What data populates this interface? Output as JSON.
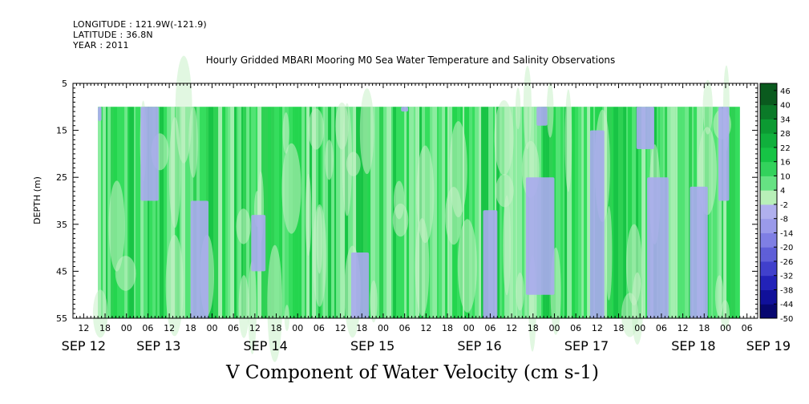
{
  "header": {
    "longitude": "LONGITUDE : 121.9W(-121.9)",
    "latitude": "LATITUDE : 36.8N",
    "year": "YEAR : 2011"
  },
  "chart_data": {
    "type": "heatmap",
    "title": "Hourly Gridded MBARI Mooring M0 Sea Water Temperature and Salinity Observations",
    "variable_label": "V Component of Water Velocity (cm s-1)",
    "ylabel": "DEPTH (m)",
    "ylim": [
      5,
      55
    ],
    "y_inverted": true,
    "y_ticks": [
      5,
      15,
      25,
      35,
      45,
      55
    ],
    "data_depth_range": [
      10,
      55
    ],
    "time_start_hour": 16,
    "time_end_hour": 196,
    "axis_start_hour": 9,
    "axis_end_hour": 201,
    "hour_tick_labels": [
      "12",
      "18",
      "00",
      "06",
      "12",
      "18",
      "00",
      "06",
      "12",
      "18",
      "00",
      "06",
      "12",
      "18",
      "00",
      "06",
      "12",
      "18",
      "00",
      "06",
      "12",
      "18",
      "00",
      "06",
      "12",
      "18",
      "00",
      "06",
      "12",
      "18",
      "00",
      "06"
    ],
    "hour_tick_hours": [
      12,
      18,
      24,
      30,
      36,
      42,
      48,
      54,
      60,
      66,
      72,
      78,
      84,
      90,
      96,
      102,
      108,
      114,
      120,
      126,
      132,
      138,
      144,
      150,
      156,
      162,
      168,
      174,
      180,
      186,
      192,
      198
    ],
    "day_labels": [
      "SEP 12",
      "SEP 13",
      "SEP 14",
      "SEP 15",
      "SEP 16",
      "SEP 17",
      "SEP 18",
      "SEP 19"
    ],
    "day_label_hours": [
      12,
      33,
      63,
      93,
      123,
      153,
      183,
      204
    ],
    "colorbar_labels": [
      "46",
      "40",
      "34",
      "28",
      "22",
      "16",
      "10",
      "4",
      "-2",
      "-8",
      "-14",
      "-20",
      "-26",
      "-32",
      "-38",
      "-44",
      "-50"
    ],
    "colorbar_min": -50,
    "colorbar_max": 49,
    "colorbar_step": 3,
    "colors": {
      "negative_band": "#aaaaee",
      "near_zero": "#c8f0c8",
      "positive_mid": "#44dd66",
      "positive_high": "#10c040"
    },
    "negative_bands_hours": [
      {
        "start": 16,
        "end": 17,
        "top": 10,
        "bottom": 13
      },
      {
        "start": 28,
        "end": 33,
        "top": 10,
        "bottom": 30
      },
      {
        "start": 42,
        "end": 47,
        "top": 30,
        "bottom": 55
      },
      {
        "start": 59,
        "end": 63,
        "top": 33,
        "bottom": 45
      },
      {
        "start": 87,
        "end": 92,
        "top": 41,
        "bottom": 55
      },
      {
        "start": 101,
        "end": 103,
        "top": 10,
        "bottom": 11
      },
      {
        "start": 124,
        "end": 128,
        "top": 32,
        "bottom": 55
      },
      {
        "start": 136,
        "end": 144,
        "top": 25,
        "bottom": 50
      },
      {
        "start": 139,
        "end": 142,
        "top": 10,
        "bottom": 14
      },
      {
        "start": 154,
        "end": 158,
        "top": 15,
        "bottom": 55
      },
      {
        "start": 167,
        "end": 172,
        "top": 10,
        "bottom": 19
      },
      {
        "start": 170,
        "end": 176,
        "top": 25,
        "bottom": 55
      },
      {
        "start": 182,
        "end": 187,
        "top": 27,
        "bottom": 55
      },
      {
        "start": 190,
        "end": 193,
        "top": 10,
        "bottom": 30
      }
    ]
  }
}
